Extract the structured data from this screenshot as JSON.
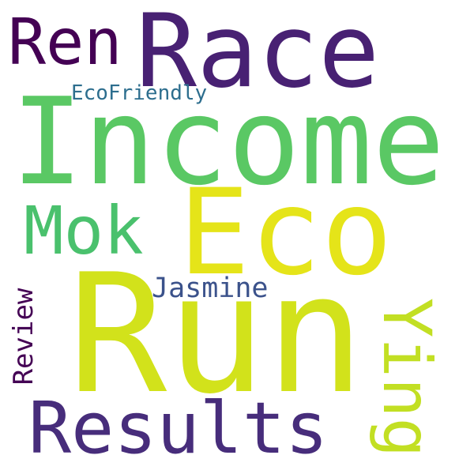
{
  "word_cloud": {
    "words": {
      "race": "Race",
      "ren": "Ren",
      "ecofriendly": "EcoFriendly",
      "income": "Income",
      "mok": "Mok",
      "eco": "Eco",
      "jasmine": "Jasmine",
      "review": "Review",
      "run": "Run",
      "ying": "Ying",
      "results": "Results"
    },
    "colors": {
      "race": "#482173",
      "ren": "#440154",
      "ecofriendly": "#2d6e8e",
      "income": "#5ac864",
      "mok": "#4ac16d",
      "eco": "#e5e419",
      "jasmine": "#3b528b",
      "review": "#440154",
      "run": "#d2e21b",
      "ying": "#c2df23",
      "results": "#472d7b"
    },
    "background": "#ffffff"
  }
}
